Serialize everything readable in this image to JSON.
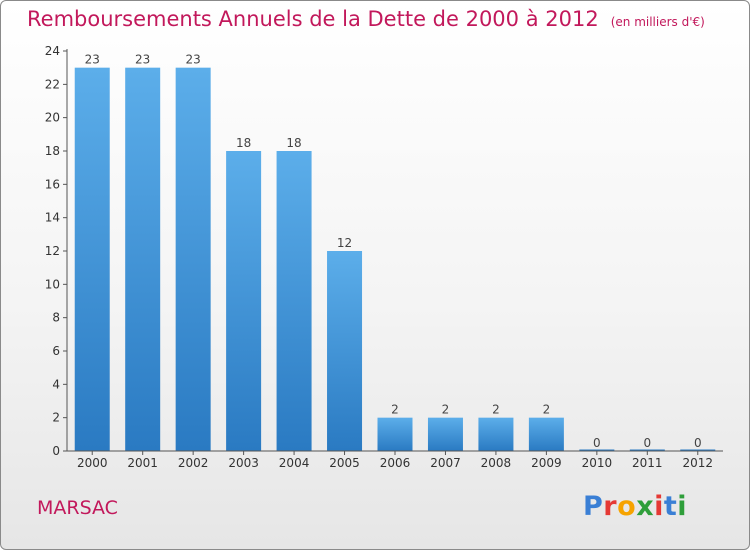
{
  "header": {
    "title": "Remboursements Annuels de la Dette de 2000 à 2012",
    "subtitle": "(en milliers d'€)"
  },
  "footer": {
    "commune": "MARSAC",
    "logo": "Proxiti"
  },
  "colors": {
    "title": "#c2185b",
    "bar_top": "#5aaeeb",
    "bar_bottom": "#2b7cc4",
    "axis": "#555555"
  },
  "chart_data": {
    "type": "bar",
    "title": "Remboursements Annuels de la Dette de 2000 à 2012",
    "subtitle": "(en milliers d'€)",
    "categories": [
      "2000",
      "2001",
      "2002",
      "2003",
      "2004",
      "2005",
      "2006",
      "2007",
      "2008",
      "2009",
      "2010",
      "2011",
      "2012"
    ],
    "values": [
      23,
      23,
      23,
      18,
      18,
      12,
      2,
      2,
      2,
      2,
      0,
      0,
      0
    ],
    "ylim": [
      0,
      24
    ],
    "yticks": [
      0,
      2,
      4,
      6,
      8,
      10,
      12,
      14,
      16,
      18,
      20,
      22,
      24
    ],
    "grid": false,
    "legend": "none"
  }
}
